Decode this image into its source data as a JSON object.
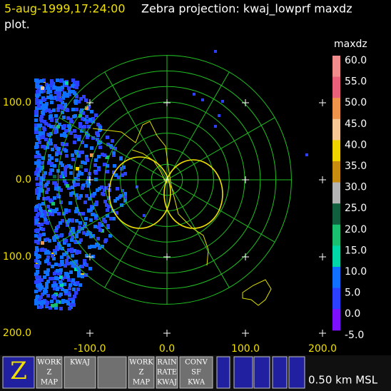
{
  "header": {
    "timestamp": "5-aug-1999,17:24:00",
    "title": "Zebra projection: kwaj_lowprf maxdz",
    "title_cont": "plot."
  },
  "plot": {
    "y_labels": [
      "100.0",
      "0.0",
      "100.0",
      "200.0"
    ],
    "x_labels": [
      "-100.0",
      "0.0",
      "100.0",
      "200.0"
    ]
  },
  "colorbar": {
    "title": "maxdz",
    "labels": [
      "60.0",
      "55.0",
      "50.0",
      "45.0",
      "40.0",
      "35.0",
      "30.0",
      "25.0",
      "20.0",
      "15.0",
      "10.0",
      "5.0",
      "0.0",
      "-5.0"
    ],
    "colors": [
      "#f08c8c",
      "#e8607a",
      "#f0944c",
      "#f5c896",
      "#f0d400",
      "#c88c10",
      "#b4b4b4",
      "#106040",
      "#18c070",
      "#00d8a8",
      "#1070ff",
      "#2c40ff",
      "#7c10ff",
      "#9000e0"
    ]
  },
  "toolbar": {
    "buttons": [
      {
        "lines": [
          "Z"
        ]
      },
      {
        "lines": [
          "WORK",
          "Z",
          "MAP"
        ]
      },
      {
        "lines": [
          "KWAJ"
        ]
      },
      {
        "lines": [
          ""
        ]
      },
      {
        "lines": [
          "WORK",
          "Z",
          "MAP"
        ]
      },
      {
        "lines": [
          "RAIN",
          "RATE",
          "KWAJ"
        ]
      },
      {
        "lines": [
          "CONV",
          "SF",
          "KWA"
        ]
      }
    ],
    "altitude": "0.50 km MSL"
  }
}
